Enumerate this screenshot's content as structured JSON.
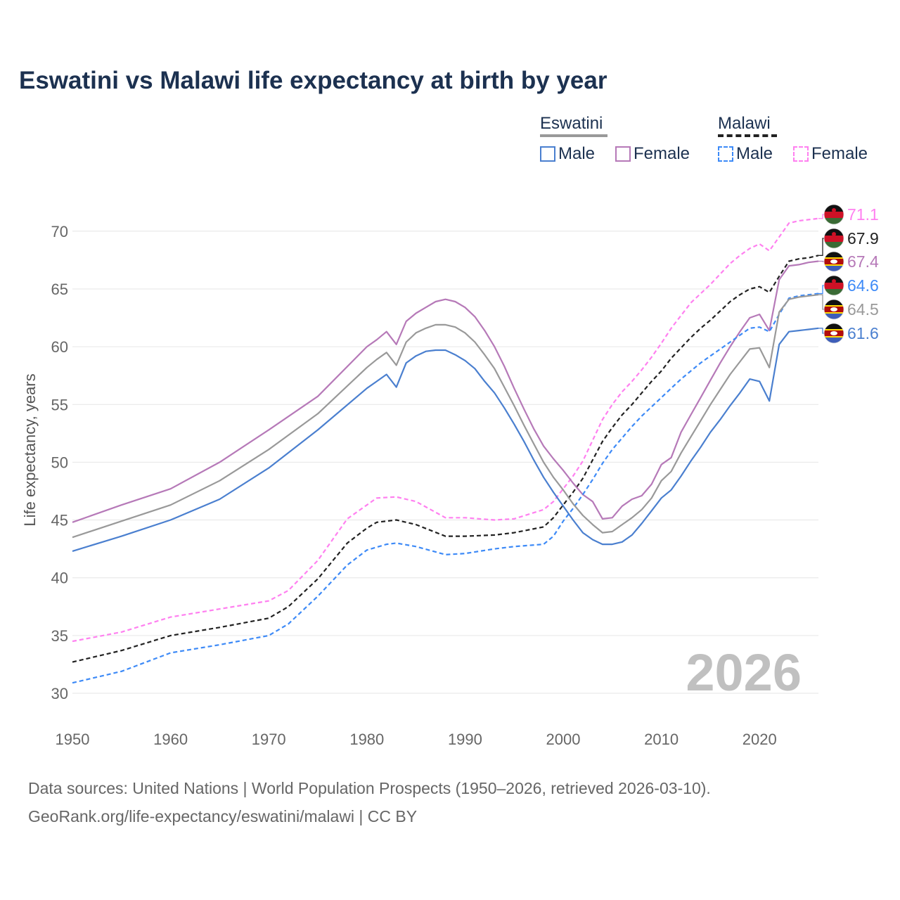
{
  "chart_data": {
    "type": "line",
    "title": "Eswatini vs Malawi life expectancy at birth by year",
    "ylabel": "Life expectancy, years",
    "xlabel": "",
    "xlim": [
      1950,
      2026
    ],
    "ylim": [
      30,
      72
    ],
    "x_ticks": [
      "1950",
      "1960",
      "1970",
      "1980",
      "1990",
      "2000",
      "2010",
      "2020"
    ],
    "y_ticks": [
      "30",
      "35",
      "40",
      "45",
      "50",
      "55",
      "60",
      "65",
      "70"
    ],
    "grid": true,
    "year_watermark": "2026",
    "legend": {
      "placement": "top-right",
      "groups": [
        {
          "name": "Eswatini",
          "items": [
            "Male",
            "Female"
          ]
        },
        {
          "name": "Malawi",
          "items": [
            "Male",
            "Female"
          ]
        }
      ]
    },
    "series": [
      {
        "name": "Malawi Female",
        "color": "#ff80f0",
        "dash": true,
        "end_label": "71.1",
        "flag": "malawi",
        "x": [
          1950,
          1955,
          1960,
          1965,
          1970,
          1972,
          1975,
          1978,
          1980,
          1981,
          1983,
          1985,
          1988,
          1990,
          1993,
          1995,
          1998,
          1999,
          2000,
          2001,
          2002,
          2003,
          2004,
          2005,
          2006,
          2007,
          2008,
          2009,
          2010,
          2011,
          2012,
          2013,
          2014,
          2015,
          2016,
          2017,
          2018,
          2019,
          2020,
          2021,
          2022,
          2023,
          2024,
          2025,
          2026
        ],
        "y": [
          34.5,
          35.3,
          36.6,
          37.3,
          38.0,
          38.9,
          41.5,
          45.1,
          46.3,
          46.9,
          47.0,
          46.6,
          45.2,
          45.2,
          45.0,
          45.1,
          45.9,
          46.6,
          47.7,
          48.8,
          50.1,
          51.9,
          53.7,
          55.0,
          56.1,
          57.0,
          58.0,
          59.1,
          60.3,
          61.6,
          62.7,
          63.8,
          64.6,
          65.4,
          66.3,
          67.2,
          67.9,
          68.5,
          68.9,
          68.3,
          69.5,
          70.7,
          70.9,
          71.0,
          71.1
        ]
      },
      {
        "name": "Malawi",
        "color": "#222222",
        "dash": true,
        "end_label": "67.9",
        "flag": "malawi",
        "x": [
          1950,
          1955,
          1960,
          1965,
          1970,
          1972,
          1975,
          1978,
          1980,
          1981,
          1983,
          1985,
          1988,
          1990,
          1993,
          1995,
          1998,
          1999,
          2000,
          2001,
          2002,
          2003,
          2004,
          2005,
          2006,
          2007,
          2008,
          2009,
          2010,
          2011,
          2012,
          2013,
          2014,
          2015,
          2016,
          2017,
          2018,
          2019,
          2020,
          2021,
          2022,
          2023,
          2024,
          2025,
          2026
        ],
        "y": [
          32.7,
          33.7,
          35.0,
          35.7,
          36.5,
          37.5,
          39.9,
          43.0,
          44.3,
          44.8,
          45.0,
          44.6,
          43.6,
          43.6,
          43.7,
          43.9,
          44.4,
          45.2,
          46.3,
          47.4,
          48.6,
          50.2,
          51.8,
          53.0,
          54.1,
          55.0,
          56.0,
          57.0,
          57.9,
          59.0,
          59.9,
          60.8,
          61.6,
          62.3,
          63.1,
          63.9,
          64.5,
          65.0,
          65.2,
          64.7,
          66.1,
          67.4,
          67.6,
          67.7,
          67.9
        ]
      },
      {
        "name": "Eswatini Female",
        "color": "#b679b8",
        "dash": false,
        "end_label": "67.4",
        "flag": "eswatini",
        "x": [
          1950,
          1955,
          1960,
          1965,
          1970,
          1975,
          1980,
          1981,
          1982,
          1983,
          1984,
          1985,
          1986,
          1987,
          1988,
          1989,
          1990,
          1991,
          1992,
          1993,
          1994,
          1995,
          1996,
          1997,
          1998,
          1999,
          2000,
          2001,
          2002,
          2003,
          2004,
          2005,
          2006,
          2007,
          2008,
          2009,
          2010,
          2011,
          2012,
          2013,
          2014,
          2015,
          2016,
          2017,
          2018,
          2019,
          2020,
          2021,
          2022,
          2023,
          2024,
          2025,
          2026
        ],
        "y": [
          44.8,
          46.3,
          47.7,
          50.0,
          52.8,
          55.7,
          60.0,
          60.6,
          61.3,
          60.2,
          62.2,
          62.9,
          63.4,
          63.9,
          64.1,
          63.9,
          63.4,
          62.6,
          61.4,
          60.0,
          58.3,
          56.4,
          54.6,
          52.9,
          51.4,
          50.3,
          49.3,
          48.2,
          47.2,
          46.6,
          45.1,
          45.2,
          46.2,
          46.8,
          47.1,
          48.1,
          49.8,
          50.4,
          52.6,
          54.1,
          55.6,
          57.1,
          58.6,
          60.0,
          61.3,
          62.5,
          62.8,
          61.4,
          65.8,
          67.0,
          67.1,
          67.3,
          67.4
        ]
      },
      {
        "name": "Malawi Male",
        "color": "#3d8af7",
        "dash": true,
        "end_label": "64.6",
        "flag": "malawi",
        "x": [
          1950,
          1955,
          1960,
          1965,
          1970,
          1972,
          1975,
          1978,
          1980,
          1982,
          1983,
          1985,
          1988,
          1990,
          1993,
          1995,
          1998,
          1999,
          2000,
          2001,
          2002,
          2003,
          2004,
          2005,
          2006,
          2007,
          2008,
          2009,
          2010,
          2011,
          2012,
          2013,
          2014,
          2015,
          2016,
          2017,
          2018,
          2019,
          2020,
          2021,
          2022,
          2023,
          2024,
          2025,
          2026
        ],
        "y": [
          30.9,
          31.9,
          33.5,
          34.2,
          35.0,
          36.0,
          38.4,
          41.1,
          42.4,
          42.9,
          43.0,
          42.7,
          42.0,
          42.1,
          42.5,
          42.7,
          42.9,
          43.6,
          44.9,
          46.0,
          47.2,
          48.5,
          49.9,
          51.1,
          52.1,
          53.1,
          54.0,
          54.8,
          55.6,
          56.4,
          57.2,
          57.9,
          58.6,
          59.2,
          59.8,
          60.4,
          61.0,
          61.6,
          61.7,
          61.3,
          62.8,
          64.2,
          64.4,
          64.5,
          64.6
        ]
      },
      {
        "name": "Eswatini",
        "color": "#999999",
        "dash": false,
        "end_label": "64.5",
        "flag": "eswatini",
        "x": [
          1950,
          1955,
          1960,
          1965,
          1970,
          1975,
          1980,
          1981,
          1982,
          1983,
          1984,
          1985,
          1986,
          1987,
          1988,
          1989,
          1990,
          1991,
          1992,
          1993,
          1994,
          1995,
          1996,
          1997,
          1998,
          1999,
          2000,
          2001,
          2002,
          2003,
          2004,
          2005,
          2006,
          2007,
          2008,
          2009,
          2010,
          2011,
          2012,
          2013,
          2014,
          2015,
          2016,
          2017,
          2018,
          2019,
          2020,
          2021,
          2022,
          2023,
          2024,
          2025,
          2026
        ],
        "y": [
          43.5,
          44.9,
          46.3,
          48.4,
          51.1,
          54.2,
          58.2,
          58.9,
          59.5,
          58.4,
          60.4,
          61.2,
          61.6,
          61.9,
          61.9,
          61.7,
          61.2,
          60.4,
          59.3,
          58.1,
          56.5,
          54.9,
          53.2,
          51.6,
          50.0,
          48.7,
          47.6,
          46.4,
          45.4,
          44.6,
          43.9,
          44.0,
          44.6,
          45.2,
          45.9,
          46.9,
          48.4,
          49.2,
          50.8,
          52.2,
          53.6,
          55.0,
          56.3,
          57.6,
          58.7,
          59.8,
          59.9,
          58.2,
          63.0,
          64.1,
          64.3,
          64.4,
          64.5
        ]
      },
      {
        "name": "Eswatini Male",
        "color": "#4a7fcf",
        "dash": false,
        "end_label": "61.6",
        "flag": "eswatini",
        "x": [
          1950,
          1955,
          1960,
          1965,
          1970,
          1975,
          1980,
          1981,
          1982,
          1983,
          1984,
          1985,
          1986,
          1987,
          1988,
          1989,
          1990,
          1991,
          1992,
          1993,
          1994,
          1995,
          1996,
          1997,
          1998,
          1999,
          2000,
          2001,
          2002,
          2003,
          2004,
          2005,
          2006,
          2007,
          2008,
          2009,
          2010,
          2011,
          2012,
          2013,
          2014,
          2015,
          2016,
          2017,
          2018,
          2019,
          2020,
          2021,
          2022,
          2023,
          2024,
          2025,
          2026
        ],
        "y": [
          42.3,
          43.6,
          45.0,
          46.8,
          49.5,
          52.8,
          56.4,
          57.0,
          57.6,
          56.5,
          58.6,
          59.2,
          59.6,
          59.7,
          59.7,
          59.3,
          58.8,
          58.1,
          57.0,
          56.0,
          54.7,
          53.3,
          51.8,
          50.2,
          48.7,
          47.4,
          46.2,
          45.0,
          43.9,
          43.3,
          42.9,
          42.9,
          43.1,
          43.7,
          44.7,
          45.8,
          46.9,
          47.6,
          48.8,
          50.1,
          51.3,
          52.6,
          53.7,
          54.9,
          56.0,
          57.2,
          57.0,
          55.3,
          60.2,
          61.3,
          61.4,
          61.5,
          61.6
        ]
      }
    ]
  },
  "legend": {
    "eswatini": "Eswatini",
    "malawi": "Malawi",
    "male": "Male",
    "female": "Female"
  },
  "footer": {
    "line1": "Data sources: United Nations | World Population Prospects (1950–2026, retrieved 2026-03-10).",
    "line2": "GeoRank.org/life-expectancy/eswatini/malawi | CC BY"
  }
}
